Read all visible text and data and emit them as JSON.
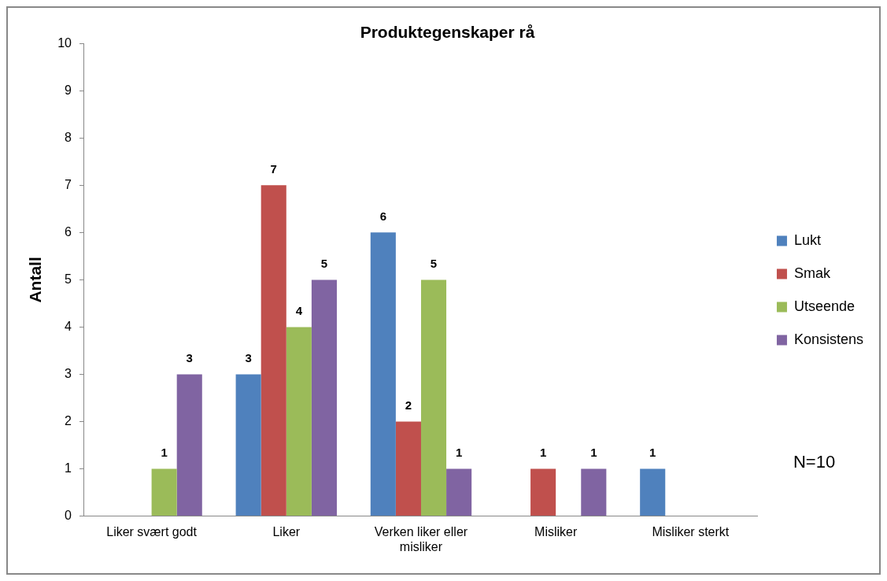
{
  "chart_data": {
    "type": "bar",
    "title": "Produktegenskaper rå",
    "ylabel": "Antall",
    "categories": [
      "Liker svært godt",
      "Liker",
      "Verken liker eller misliker",
      "Misliker",
      "Misliker sterkt"
    ],
    "series": [
      {
        "name": "Lukt",
        "color": "#4f81bd",
        "values": [
          null,
          3,
          6,
          null,
          1
        ]
      },
      {
        "name": "Smak",
        "color": "#c0504d",
        "values": [
          null,
          7,
          2,
          1,
          null
        ]
      },
      {
        "name": "Utseende",
        "color": "#9bbb59",
        "values": [
          1,
          4,
          5,
          null,
          null
        ]
      },
      {
        "name": "Konsistens",
        "color": "#8064a2",
        "values": [
          3,
          5,
          1,
          1,
          null
        ]
      }
    ],
    "ylim": [
      0,
      10
    ],
    "yticks": [
      0,
      1,
      2,
      3,
      4,
      5,
      6,
      7,
      8,
      9,
      10
    ],
    "grid": false,
    "legend": "right",
    "data_labels": true,
    "annotations": [
      "N=10"
    ]
  }
}
